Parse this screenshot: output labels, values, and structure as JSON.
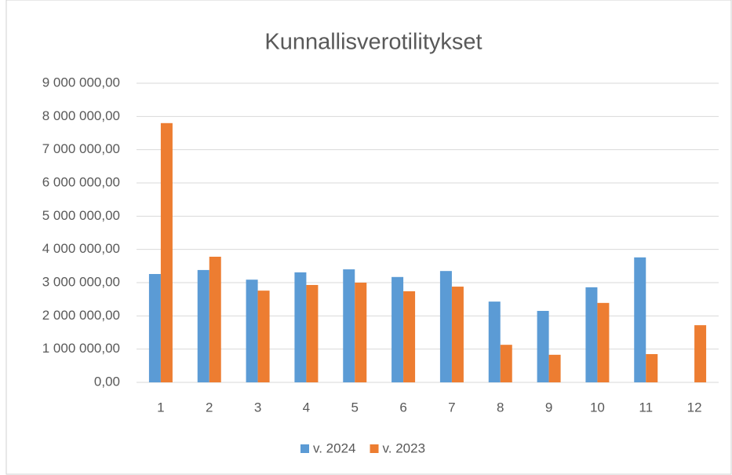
{
  "chart_data": {
    "type": "bar",
    "title": "Kunnallisverotilitykset",
    "categories": [
      "1",
      "2",
      "3",
      "4",
      "5",
      "6",
      "7",
      "8",
      "9",
      "10",
      "11",
      "12"
    ],
    "series": [
      {
        "name": "v. 2024",
        "color": "#5b9bd5",
        "values": [
          3260000,
          3380000,
          3090000,
          3310000,
          3400000,
          3170000,
          3350000,
          2430000,
          2150000,
          2860000,
          3760000,
          null
        ]
      },
      {
        "name": "v. 2023",
        "color": "#ed7d31",
        "values": [
          7800000,
          3780000,
          2760000,
          2930000,
          3000000,
          2740000,
          2880000,
          1130000,
          830000,
          2390000,
          850000,
          1720000
        ]
      }
    ],
    "ylim": [
      0,
      9000000
    ],
    "yticks": [
      {
        "value": 0,
        "label": "0,00"
      },
      {
        "value": 1000000,
        "label": "1 000 000,00"
      },
      {
        "value": 2000000,
        "label": "2 000 000,00"
      },
      {
        "value": 3000000,
        "label": "3 000 000,00"
      },
      {
        "value": 4000000,
        "label": "4 000 000,00"
      },
      {
        "value": 5000000,
        "label": "5 000 000,00"
      },
      {
        "value": 6000000,
        "label": "6 000 000,00"
      },
      {
        "value": 7000000,
        "label": "7 000 000,00"
      },
      {
        "value": 8000000,
        "label": "8 000 000,00"
      },
      {
        "value": 9000000,
        "label": "9 000 000,00"
      }
    ],
    "grid": true,
    "legend": "bottom"
  }
}
